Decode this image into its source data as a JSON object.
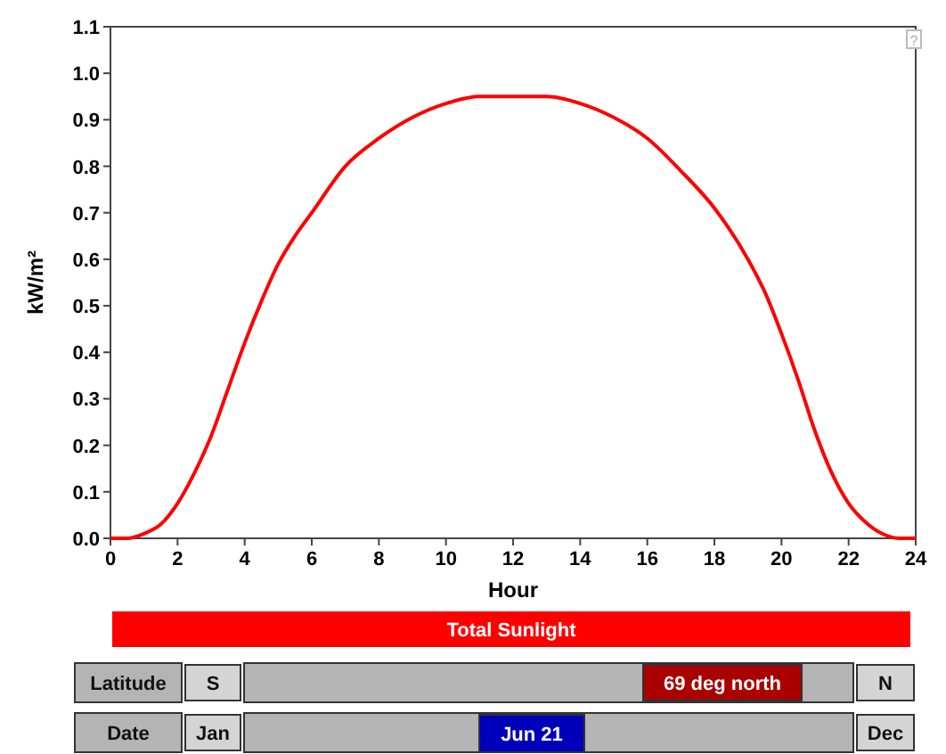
{
  "chart_data": {
    "type": "line",
    "xlabel": "Hour",
    "ylabel": "kW/m²",
    "x": [
      0,
      0.5,
      1,
      1.5,
      2,
      2.5,
      3,
      3.5,
      4,
      4.5,
      5,
      5.5,
      6,
      7,
      8,
      9,
      10,
      11,
      12,
      13,
      14,
      15,
      16,
      17,
      18,
      19,
      19.5,
      20,
      20.5,
      21,
      21.5,
      22,
      22.5,
      23,
      23.5,
      24
    ],
    "series": [
      {
        "color": "#ff0000",
        "values": [
          0,
          0,
          0.01,
          0.03,
          0.075,
          0.14,
          0.22,
          0.32,
          0.42,
          0.51,
          0.59,
          0.65,
          0.7,
          0.8,
          0.86,
          0.905,
          0.935,
          0.95,
          0.95,
          0.95,
          0.935,
          0.905,
          0.86,
          0.79,
          0.71,
          0.6,
          0.53,
          0.44,
          0.34,
          0.23,
          0.14,
          0.075,
          0.035,
          0.01,
          0,
          0
        ]
      }
    ],
    "xlim": [
      0,
      24
    ],
    "xticks": [
      0,
      2,
      4,
      6,
      8,
      10,
      12,
      14,
      16,
      18,
      20,
      22,
      24
    ],
    "ylim": [
      0,
      1.1
    ],
    "yticks": [
      {
        "value": 0,
        "label": "0.0"
      },
      {
        "value": 0.1,
        "label": "0.1"
      },
      {
        "value": 0.2,
        "label": "0.2"
      },
      {
        "value": 0.3,
        "label": "0.3"
      },
      {
        "value": 0.4,
        "label": "0.4"
      },
      {
        "value": 0.5,
        "label": "0.5"
      },
      {
        "value": 0.6,
        "label": "0.6"
      },
      {
        "value": 0.7,
        "label": "0.7"
      },
      {
        "value": 0.8,
        "label": "0.8"
      },
      {
        "value": 0.9,
        "label": "0.9"
      },
      {
        "value": 1,
        "label": "1.0"
      },
      {
        "value": 1.1,
        "label": "1.1"
      }
    ],
    "grid": false,
    "annotations": [
      "Total Sunlight",
      "Latitude",
      "S",
      "69 deg north",
      "N",
      "Date",
      "Jan",
      "Jun 21",
      "Dec",
      "?"
    ]
  }
}
